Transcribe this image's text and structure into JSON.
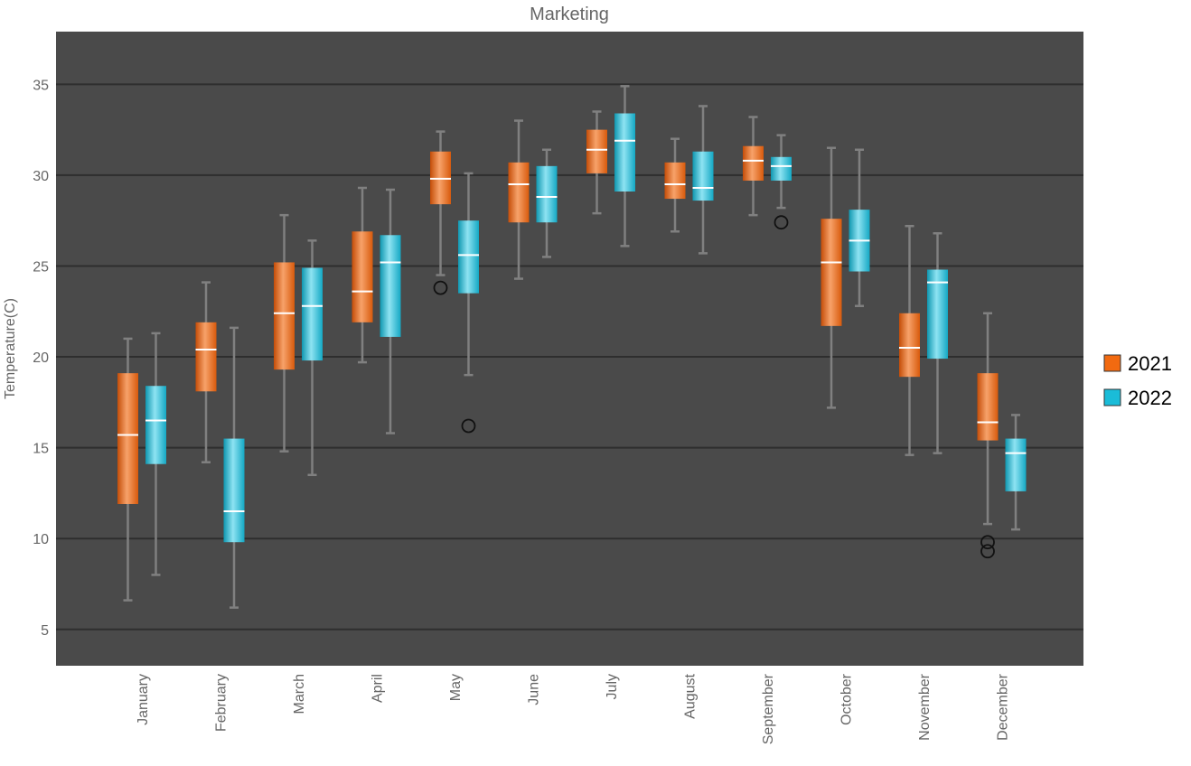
{
  "chart_data": {
    "type": "box",
    "title": "Marketing",
    "xlabel": "",
    "ylabel": "Temperature(C)",
    "ylim": [
      3,
      37.9
    ],
    "yticks": [
      5,
      10,
      15,
      20,
      25,
      30,
      35
    ],
    "grid": true,
    "legend_position": "right",
    "categories": [
      "January",
      "February",
      "March",
      "April",
      "May",
      "June",
      "July",
      "August",
      "September",
      "October",
      "November",
      "December"
    ],
    "series": [
      {
        "name": "2021",
        "color": "#F26A10",
        "boxes": [
          {
            "min": 6.6,
            "q1": 11.9,
            "median": 15.7,
            "q3": 19.1,
            "max": 21.0,
            "outliers": []
          },
          {
            "min": 14.2,
            "q1": 18.1,
            "median": 20.4,
            "q3": 21.9,
            "max": 24.1,
            "outliers": []
          },
          {
            "min": 14.8,
            "q1": 19.3,
            "median": 22.4,
            "q3": 25.2,
            "max": 27.8,
            "outliers": []
          },
          {
            "min": 19.7,
            "q1": 21.9,
            "median": 23.6,
            "q3": 26.9,
            "max": 29.3,
            "outliers": []
          },
          {
            "min": 24.5,
            "q1": 28.4,
            "median": 29.8,
            "q3": 31.3,
            "max": 32.4,
            "outliers": [
              23.8
            ]
          },
          {
            "min": 24.3,
            "q1": 27.4,
            "median": 29.5,
            "q3": 30.7,
            "max": 33.0,
            "outliers": []
          },
          {
            "min": 27.9,
            "q1": 30.1,
            "median": 31.4,
            "q3": 32.5,
            "max": 33.5,
            "outliers": []
          },
          {
            "min": 26.9,
            "q1": 28.7,
            "median": 29.5,
            "q3": 30.7,
            "max": 32.0,
            "outliers": []
          },
          {
            "min": 27.8,
            "q1": 29.7,
            "median": 30.8,
            "q3": 31.6,
            "max": 33.2,
            "outliers": []
          },
          {
            "min": 17.2,
            "q1": 21.7,
            "median": 25.2,
            "q3": 27.6,
            "max": 31.5,
            "outliers": []
          },
          {
            "min": 14.6,
            "q1": 18.9,
            "median": 20.5,
            "q3": 22.4,
            "max": 27.2,
            "outliers": []
          },
          {
            "min": 10.8,
            "q1": 15.4,
            "median": 16.4,
            "q3": 19.1,
            "max": 22.4,
            "outliers": [
              9.8,
              9.3
            ]
          }
        ]
      },
      {
        "name": "2022",
        "color": "#1ABCD8",
        "boxes": [
          {
            "min": 8.0,
            "q1": 14.1,
            "median": 16.5,
            "q3": 18.4,
            "max": 21.3,
            "outliers": []
          },
          {
            "min": 6.2,
            "q1": 9.8,
            "median": 11.5,
            "q3": 15.5,
            "max": 21.6,
            "outliers": []
          },
          {
            "min": 13.5,
            "q1": 19.8,
            "median": 22.8,
            "q3": 24.9,
            "max": 26.4,
            "outliers": []
          },
          {
            "min": 15.8,
            "q1": 21.1,
            "median": 25.2,
            "q3": 26.7,
            "max": 29.2,
            "outliers": []
          },
          {
            "min": 19.0,
            "q1": 23.5,
            "median": 25.6,
            "q3": 27.5,
            "max": 30.1,
            "outliers": [
              16.2
            ]
          },
          {
            "min": 25.5,
            "q1": 27.4,
            "median": 28.8,
            "q3": 30.5,
            "max": 31.4,
            "outliers": []
          },
          {
            "min": 26.1,
            "q1": 29.1,
            "median": 31.9,
            "q3": 33.4,
            "max": 34.9,
            "outliers": []
          },
          {
            "min": 25.7,
            "q1": 28.6,
            "median": 29.3,
            "q3": 31.3,
            "max": 33.8,
            "outliers": []
          },
          {
            "min": 28.2,
            "q1": 29.7,
            "median": 30.5,
            "q3": 31.0,
            "max": 32.2,
            "outliers": [
              27.4
            ]
          },
          {
            "min": 22.8,
            "q1": 24.7,
            "median": 26.4,
            "q3": 28.1,
            "max": 31.4,
            "outliers": []
          },
          {
            "min": 14.7,
            "q1": 19.9,
            "median": 24.1,
            "q3": 24.8,
            "max": 26.8,
            "outliers": []
          },
          {
            "min": 10.5,
            "q1": 12.6,
            "median": 14.7,
            "q3": 15.5,
            "max": 16.8,
            "outliers": []
          }
        ]
      }
    ]
  }
}
